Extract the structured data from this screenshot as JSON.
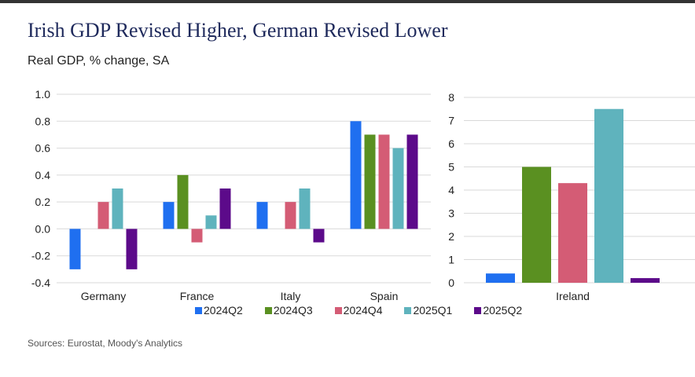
{
  "title": "Irish GDP Revised Higher, German Revised Lower",
  "subtitle": "Real GDP, % change, SA",
  "source": "Sources: Eurostat, Moody's Analytics",
  "colors": {
    "2024Q2": "#1f6ff0",
    "2024Q3": "#5a9021",
    "2024Q4": "#d45c75",
    "2025Q1": "#5fb3bd",
    "2025Q2": "#5c0a8a"
  },
  "legend": [
    "2024Q2",
    "2024Q3",
    "2024Q4",
    "2025Q1",
    "2025Q2"
  ],
  "chart_data": [
    {
      "type": "bar",
      "title": "",
      "xlabel": "",
      "ylabel": "",
      "ylim": [
        -0.4,
        1.0
      ],
      "yticks": [
        "-0.4",
        "-0.2",
        "0.0",
        "0.2",
        "0.4",
        "0.6",
        "0.8",
        "1.0"
      ],
      "categories": [
        "Germany",
        "France",
        "Italy",
        "Spain"
      ],
      "series": [
        {
          "name": "2024Q2",
          "values": [
            -0.3,
            0.2,
            0.2,
            0.8
          ]
        },
        {
          "name": "2024Q3",
          "values": [
            0.0,
            0.4,
            0.0,
            0.7
          ]
        },
        {
          "name": "2024Q4",
          "values": [
            0.2,
            -0.1,
            0.2,
            0.7
          ]
        },
        {
          "name": "2025Q1",
          "values": [
            0.3,
            0.1,
            0.3,
            0.6
          ]
        },
        {
          "name": "2025Q2",
          "values": [
            -0.3,
            0.3,
            -0.1,
            0.7
          ]
        }
      ],
      "grid": true
    },
    {
      "type": "bar",
      "title": "",
      "xlabel": "",
      "ylabel": "",
      "ylim": [
        0,
        8
      ],
      "yticks": [
        "0",
        "1",
        "2",
        "3",
        "4",
        "5",
        "6",
        "7",
        "8"
      ],
      "categories": [
        "Ireland"
      ],
      "series": [
        {
          "name": "2024Q2",
          "values": [
            0.4
          ]
        },
        {
          "name": "2024Q3",
          "values": [
            5.0
          ]
        },
        {
          "name": "2024Q4",
          "values": [
            4.3
          ]
        },
        {
          "name": "2025Q1",
          "values": [
            7.5
          ]
        },
        {
          "name": "2025Q2",
          "values": [
            0.2
          ]
        }
      ],
      "grid": true
    }
  ]
}
